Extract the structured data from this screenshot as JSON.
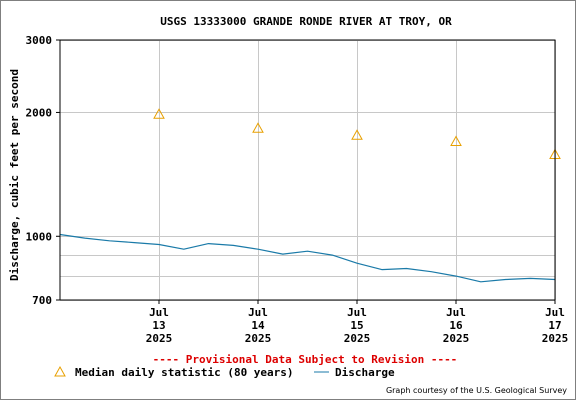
{
  "chart_data": {
    "type": "line",
    "title": "USGS 13333000 GRANDE RONDE RIVER AT TROY, OR",
    "ylabel": "Discharge, cubic feet per second",
    "xlabel": "",
    "y_scale": "log",
    "ylim": [
      700,
      3000
    ],
    "y_ticks": [
      "700",
      "1000",
      "2000",
      "3000"
    ],
    "y_grid_values": [
      700,
      800,
      900,
      1000,
      2000,
      3000
    ],
    "x_range": [
      "2025-07-12T12:00",
      "2025-07-17T12:00"
    ],
    "x_ticks": [
      {
        "month": "Jul",
        "day": "13",
        "year": "2025",
        "date": "2025-07-13"
      },
      {
        "month": "Jul",
        "day": "14",
        "year": "2025",
        "date": "2025-07-14"
      },
      {
        "month": "Jul",
        "day": "15",
        "year": "2025",
        "date": "2025-07-15"
      },
      {
        "month": "Jul",
        "day": "16",
        "year": "2025",
        "date": "2025-07-16"
      },
      {
        "month": "Jul",
        "day": "17",
        "year": "2025",
        "date": "2025-07-17"
      }
    ],
    "grid": true,
    "series": [
      {
        "name": "Median daily statistic (80 years)",
        "kind": "marker",
        "marker": "triangle",
        "color": "#e8a000",
        "points": [
          {
            "x": "2025-07-13",
            "y": 1980
          },
          {
            "x": "2025-07-14",
            "y": 1830
          },
          {
            "x": "2025-07-15",
            "y": 1760
          },
          {
            "x": "2025-07-16",
            "y": 1700
          },
          {
            "x": "2025-07-17",
            "y": 1580
          }
        ]
      },
      {
        "name": "Discharge",
        "kind": "line",
        "color": "#1a7aa8",
        "points": [
          {
            "x": "2025-07-12T12:00",
            "y": 1010
          },
          {
            "x": "2025-07-12T18:00",
            "y": 990
          },
          {
            "x": "2025-07-13T00:00",
            "y": 975
          },
          {
            "x": "2025-07-13T06:00",
            "y": 965
          },
          {
            "x": "2025-07-13T12:00",
            "y": 955
          },
          {
            "x": "2025-07-13T18:00",
            "y": 930
          },
          {
            "x": "2025-07-14T00:00",
            "y": 960
          },
          {
            "x": "2025-07-14T06:00",
            "y": 950
          },
          {
            "x": "2025-07-14T12:00",
            "y": 930
          },
          {
            "x": "2025-07-14T18:00",
            "y": 905
          },
          {
            "x": "2025-07-15T00:00",
            "y": 920
          },
          {
            "x": "2025-07-15T06:00",
            "y": 900
          },
          {
            "x": "2025-07-15T12:00",
            "y": 860
          },
          {
            "x": "2025-07-15T18:00",
            "y": 830
          },
          {
            "x": "2025-07-16T00:00",
            "y": 835
          },
          {
            "x": "2025-07-16T06:00",
            "y": 820
          },
          {
            "x": "2025-07-16T12:00",
            "y": 800
          },
          {
            "x": "2025-07-16T18:00",
            "y": 775
          },
          {
            "x": "2025-07-17T00:00",
            "y": 785
          },
          {
            "x": "2025-07-17T06:00",
            "y": 790
          },
          {
            "x": "2025-07-17T12:00",
            "y": 785
          }
        ]
      }
    ],
    "provisional_note": "---- Provisional Data Subject to Revision ----",
    "provisional_color": "#dd0000",
    "legend_placement": "bottom",
    "credit": "Graph courtesy of the U.S. Geological Survey"
  }
}
